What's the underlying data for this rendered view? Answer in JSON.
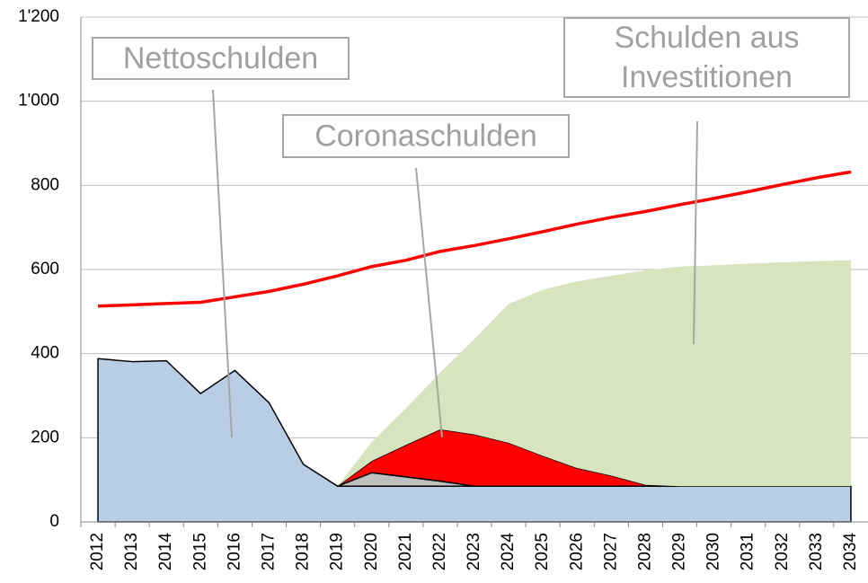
{
  "chart_data": {
    "type": "area",
    "stacked": true,
    "categories": [
      "2012",
      "2013",
      "2014",
      "2015",
      "2016",
      "2017",
      "2018",
      "2019",
      "2020",
      "2021",
      "2022",
      "2023",
      "2024",
      "2025",
      "2026",
      "2027",
      "2028",
      "2029",
      "2030",
      "2031",
      "2032",
      "2033",
      "2034"
    ],
    "series": [
      {
        "type": "area",
        "color": "#b9cde5",
        "stroke": "#000000",
        "values": [
          388,
          381,
          383,
          305,
          360,
          283,
          137,
          85,
          85,
          85,
          85,
          85,
          85,
          85,
          85,
          85,
          85,
          85,
          85,
          85,
          85,
          85,
          85
        ]
      },
      {
        "type": "area",
        "color": "#bfbfbf",
        "stroke": "#000000",
        "values": [
          null,
          null,
          null,
          null,
          null,
          null,
          null,
          0,
          32,
          22,
          12,
          0,
          0,
          0,
          0,
          0,
          0,
          0,
          0,
          0,
          0,
          0,
          0
        ]
      },
      {
        "type": "area",
        "color": "#ff0000",
        "stroke": "#000000",
        "values": [
          null,
          null,
          null,
          null,
          null,
          null,
          null,
          0,
          28,
          76,
          123,
          123,
          103,
          72,
          43,
          25,
          3,
          0,
          0,
          0,
          0,
          0,
          0
        ]
      },
      {
        "type": "area",
        "color": "#d7e4bd",
        "values": [
          null,
          null,
          null,
          null,
          null,
          null,
          null,
          0,
          45,
          87,
          135,
          227,
          330,
          395,
          444,
          475,
          510,
          522,
          525,
          529,
          532,
          535,
          537
        ]
      },
      {
        "type": "line",
        "color": "#ff0000",
        "values": [
          513,
          516,
          519,
          522,
          535,
          548,
          565,
          585,
          607,
          622,
          643,
          657,
          673,
          690,
          708,
          724,
          738,
          754,
          769,
          785,
          802,
          818,
          832
        ]
      }
    ],
    "ylim": [
      0,
      1200
    ],
    "yticks": [
      0,
      200,
      400,
      600,
      800,
      {
        "value": 1000,
        "label": "1'000"
      },
      {
        "value": 1200,
        "label": "1'200"
      }
    ],
    "grid": true,
    "annotations": [
      {
        "lines": [
          "Nettoschulden"
        ]
      },
      {
        "lines": [
          "Coronaschulden"
        ]
      },
      {
        "lines": [
          "Schulden aus",
          "Investitionen"
        ]
      }
    ]
  }
}
